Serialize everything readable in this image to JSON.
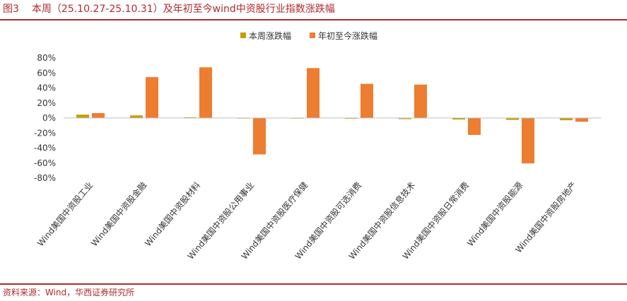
{
  "figure": {
    "number": "图3",
    "title": "本周（25.10.27-25.10.31）及年初至今wind中资股行业指数涨跌幅"
  },
  "source": "资料来源：Wind，华西证券研究所",
  "colors": {
    "weekly": "#c59d0b",
    "ytd": "#ed7d31",
    "accent": "#b22a2e"
  },
  "chart_data": {
    "type": "bar",
    "categories": [
      "Wind美国中资股工业",
      "Wind美国中资股金融",
      "Wind美国中资股材料",
      "Wind美国中资股公用事业",
      "Wind美国中资股医疗保健",
      "Wind美国中资股可选消费",
      "Wind美国中资股信息技术",
      "Wind美国中资股日常消费",
      "Wind美国中资股能源",
      "Wind美国中资股房地产"
    ],
    "series": [
      {
        "name": "本周涨跌幅",
        "values": [
          4.5,
          3.5,
          1.0,
          0.0,
          -0.5,
          -1.0,
          -1.5,
          -2.0,
          -2.5,
          -3.0
        ]
      },
      {
        "name": "年初至今涨跌幅",
        "values": [
          6.5,
          54.5,
          67.5,
          -48.5,
          66.5,
          45.5,
          44.5,
          -22.5,
          -60.5,
          -5.0
        ]
      }
    ],
    "ylim": [
      -80,
      80
    ],
    "yticks": [
      80,
      60,
      40,
      20,
      0,
      -20,
      -40,
      -60,
      -80
    ],
    "ytick_labels": [
      "80%",
      "60%",
      "40%",
      "20%",
      "0%",
      "-20%",
      "-40%",
      "-60%",
      "-80%"
    ],
    "legend_position": "top-center",
    "grid": false
  }
}
